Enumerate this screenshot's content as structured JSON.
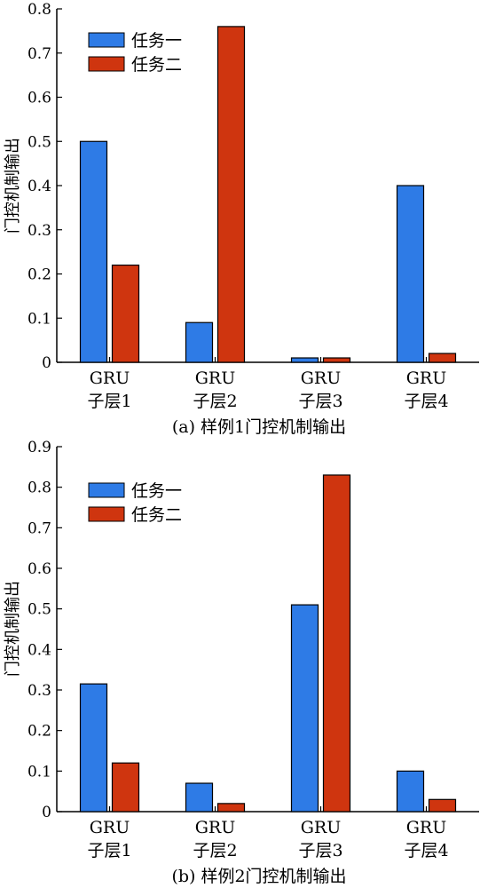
{
  "colors": {
    "task1": "#2e7be6",
    "task2": "#cf350f",
    "axis": "#000000"
  },
  "chart_data": [
    {
      "type": "bar",
      "caption": "(a) 样例1门控机制输出",
      "ylabel": "门控机制输出",
      "ylim": [
        0,
        0.8
      ],
      "yticks": [
        "0",
        "0.1",
        "0.2",
        "0.3",
        "0.4",
        "0.5",
        "0.6",
        "0.7",
        "0.8"
      ],
      "categories": [
        {
          "line1": "GRU",
          "line2": "子层1"
        },
        {
          "line1": "GRU",
          "line2": "子层2"
        },
        {
          "line1": "GRU",
          "line2": "子层3"
        },
        {
          "line1": "GRU",
          "line2": "子层4"
        }
      ],
      "legend_position": "top-left",
      "series": [
        {
          "name": "任务一",
          "color": "#2e7be6",
          "values": [
            0.5,
            0.09,
            0.01,
            0.4
          ]
        },
        {
          "name": "任务二",
          "color": "#cf350f",
          "values": [
            0.22,
            0.76,
            0.01,
            0.02
          ]
        }
      ]
    },
    {
      "type": "bar",
      "caption": "(b) 样例2门控机制输出",
      "ylabel": "门控机制输出",
      "ylim": [
        0,
        0.9
      ],
      "yticks": [
        "0",
        "0.1",
        "0.2",
        "0.3",
        "0.4",
        "0.5",
        "0.6",
        "0.7",
        "0.8",
        "0.9"
      ],
      "categories": [
        {
          "line1": "GRU",
          "line2": "子层1"
        },
        {
          "line1": "GRU",
          "line2": "子层2"
        },
        {
          "line1": "GRU",
          "line2": "子层3"
        },
        {
          "line1": "GRU",
          "line2": "子层4"
        }
      ],
      "legend_position": "top-left",
      "series": [
        {
          "name": "任务一",
          "color": "#2e7be6",
          "values": [
            0.315,
            0.07,
            0.51,
            0.1
          ]
        },
        {
          "name": "任务二",
          "color": "#cf350f",
          "values": [
            0.12,
            0.02,
            0.83,
            0.03
          ]
        }
      ]
    }
  ]
}
